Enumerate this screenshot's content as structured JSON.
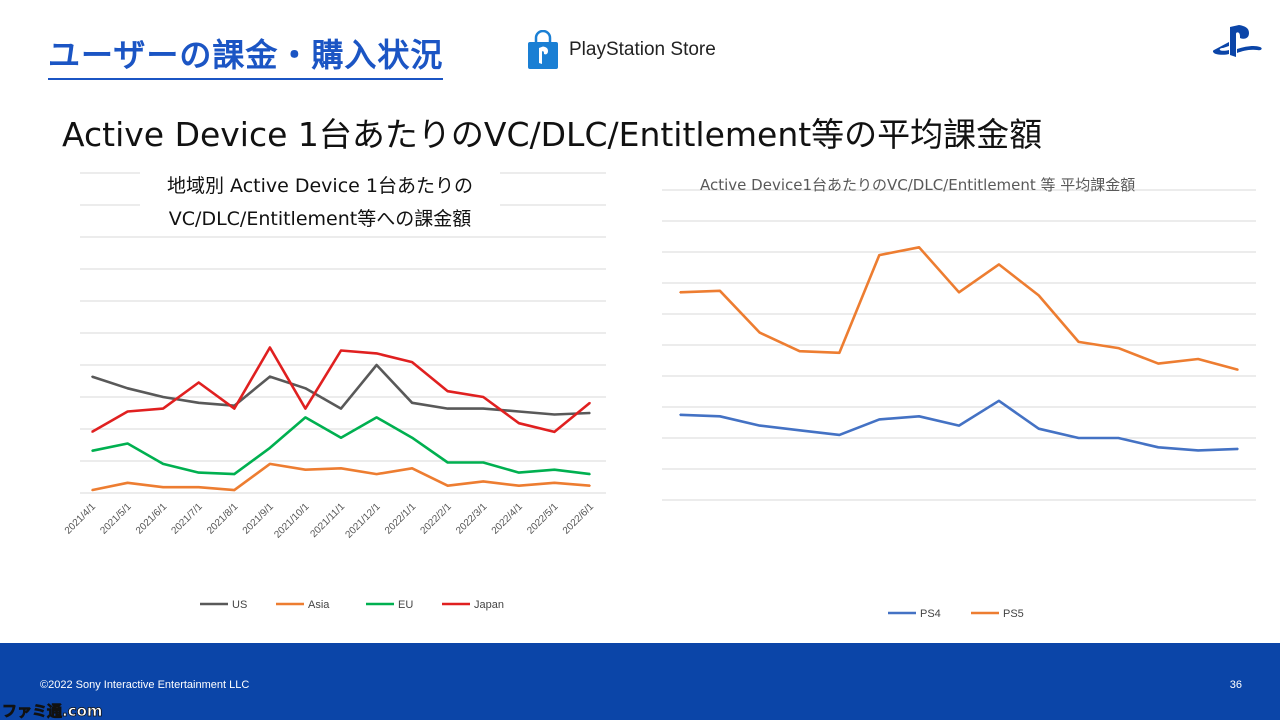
{
  "header": {
    "title": "ユーザーの課金・購入状況",
    "store_label": "PlayStation Store",
    "subtitle": "Active Device 1台あたりのVC/DLC/Entitlement等の平均課金額"
  },
  "left_chart": {
    "title_line1": "地域別 Active Device  1台あたりの",
    "title_line2": "VC/DLC/Entitlement等への課金額"
  },
  "right_chart": {
    "title": "Active Device1台あたりのVC/DLC/Entitlement 等 平均課金額"
  },
  "footer": {
    "copyright": "©2022 Sony Interactive Entertainment LLC",
    "page_number": "36"
  },
  "watermark": "ファミ通.com",
  "colors": {
    "heading_blue": "#1b55c4",
    "footer_blue": "#0b45a8",
    "us": "#595959",
    "asia": "#ed7d31",
    "eu": "#00b050",
    "japan": "#e02020",
    "ps4": "#4472c4",
    "ps5": "#ed7d31"
  },
  "chart_data": [
    {
      "type": "line",
      "title": "地域別 Active Device  1台あたりの VC/DLC/Entitlement等への課金額",
      "x": [
        "2021/4/1",
        "2021/5/1",
        "2021/6/1",
        "2021/7/1",
        "2021/8/1",
        "2021/9/1",
        "2021/10/1",
        "2021/11/1",
        "2021/12/1",
        "2022/1/1",
        "2022/2/1",
        "2022/3/1",
        "2022/4/1",
        "2022/5/1",
        "2022/6/1"
      ],
      "y_axis_labels": "none",
      "gridlines": 11,
      "ylim": [
        0,
        11
      ],
      "series": [
        {
          "name": "US",
          "color": "#595959",
          "values": [
            4.0,
            3.6,
            3.3,
            3.1,
            3.0,
            4.0,
            3.6,
            2.9,
            4.4,
            3.1,
            2.9,
            2.9,
            2.8,
            2.7,
            2.75
          ]
        },
        {
          "name": "Asia",
          "color": "#ed7d31",
          "values": [
            0.1,
            0.35,
            0.2,
            0.2,
            0.1,
            1.0,
            0.8,
            0.85,
            0.65,
            0.85,
            0.25,
            0.4,
            0.25,
            0.35,
            0.25
          ]
        },
        {
          "name": "EU",
          "color": "#00b050",
          "values": [
            1.45,
            1.7,
            1.0,
            0.7,
            0.65,
            1.55,
            2.6,
            1.9,
            2.6,
            1.9,
            1.05,
            1.05,
            0.7,
            0.8,
            0.65
          ]
        },
        {
          "name": "Japan",
          "color": "#e02020",
          "values": [
            2.1,
            2.8,
            2.9,
            3.8,
            2.9,
            5.0,
            2.9,
            4.9,
            4.8,
            4.5,
            3.5,
            3.3,
            2.4,
            2.1,
            3.1
          ]
        }
      ],
      "legend": "bottom"
    },
    {
      "type": "line",
      "title": "Active Device1台あたりのVC/DLC/Entitlement 等 平均課金額",
      "x_labels": "none",
      "y_axis_labels": "none",
      "gridlines": 11,
      "ylim": [
        0,
        10
      ],
      "series": [
        {
          "name": "PS4",
          "color": "#4472c4",
          "values": [
            2.75,
            2.7,
            2.4,
            2.25,
            2.1,
            2.6,
            2.7,
            2.4,
            3.2,
            2.3,
            2.0,
            2.0,
            1.7,
            1.6,
            1.65
          ]
        },
        {
          "name": "PS5",
          "color": "#ed7d31",
          "values": [
            6.7,
            6.75,
            5.4,
            4.8,
            4.75,
            7.9,
            8.15,
            6.7,
            7.6,
            6.6,
            5.1,
            4.9,
            4.4,
            4.55,
            4.2
          ]
        }
      ],
      "legend": "bottom"
    }
  ]
}
